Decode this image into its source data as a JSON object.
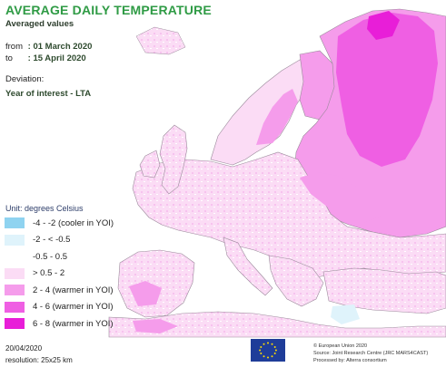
{
  "header": {
    "title": "AVERAGE DAILY TEMPERATURE",
    "subtitle": "Averaged values"
  },
  "period": {
    "from_label": "from",
    "from_value": ": 01 March 2020",
    "to_label": "to",
    "to_value": ": 15 April 2020"
  },
  "deviation": {
    "label": "Deviation:",
    "value": "Year of interest - LTA"
  },
  "legend": {
    "unit": "Unit: degrees Celsius",
    "items": [
      {
        "label": "-4 - -2 (cooler in YOI)",
        "color": "#8fd3f0"
      },
      {
        "label": "-2 - < -0.5",
        "color": "#dff3fb"
      },
      {
        "label": "-0.5 - 0.5",
        "color": "#ffffff"
      },
      {
        "label": "> 0.5 - 2",
        "color": "#fbdcf5"
      },
      {
        "label": "2 - 4 (warmer in YOI)",
        "color": "#f59ceb"
      },
      {
        "label": "4 - 6 (warmer in YOI)",
        "color": "#ef5fe3"
      },
      {
        "label": "6 - 8 (warmer in YOI)",
        "color": "#e81ed8"
      }
    ]
  },
  "footer": {
    "date": "20/04/2020",
    "resolution": "resolution: 25x25 km",
    "credits": [
      "© European Union 2020",
      "Source: Joint Research Centre (JRC MARS4CAST)",
      "Processed by: Alterra consortium"
    ]
  },
  "map": {
    "sea_color": "#ffffff",
    "border_color": "#9b8a9b",
    "logo": "eu-flag-logo"
  }
}
